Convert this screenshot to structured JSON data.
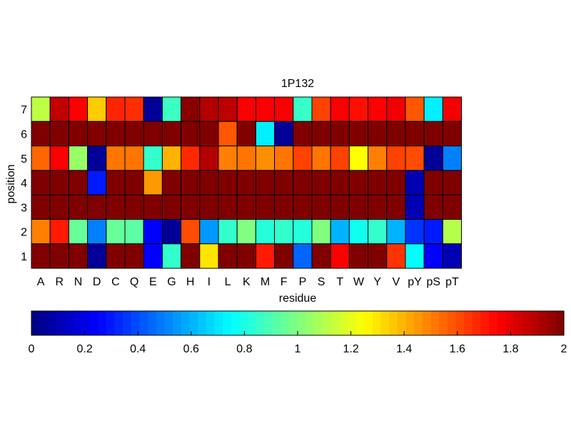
{
  "chart_data": {
    "type": "heatmap",
    "title": "1P132",
    "xlabel": "residue",
    "ylabel": "position",
    "x_categories": [
      "A",
      "R",
      "N",
      "D",
      "C",
      "Q",
      "E",
      "G",
      "H",
      "I",
      "L",
      "K",
      "M",
      "F",
      "P",
      "S",
      "T",
      "W",
      "Y",
      "V",
      "pY",
      "pS",
      "pT"
    ],
    "y_categories": [
      "7",
      "6",
      "5",
      "4",
      "3",
      "2",
      "1"
    ],
    "colorscale": "jet",
    "clim": [
      0,
      2
    ],
    "colorbar": {
      "orientation": "horizontal",
      "ticks": [
        0,
        0.2,
        0.4,
        0.6,
        0.8,
        1,
        1.2,
        1.4,
        1.6,
        1.8,
        2
      ],
      "tick_labels": [
        "0",
        "0.2",
        "0.4",
        "0.6",
        "0.8",
        "1",
        "1.2",
        "1.4",
        "1.6",
        "1.8",
        "2"
      ]
    },
    "values": [
      [
        1.12,
        1.87,
        1.75,
        1.35,
        1.68,
        1.66,
        0.05,
        0.87,
        1.98,
        1.9,
        1.88,
        1.76,
        1.76,
        1.76,
        0.86,
        1.62,
        1.76,
        1.72,
        1.75,
        1.78,
        1.58,
        0.72,
        1.77
      ],
      [
        2.0,
        2.0,
        2.0,
        2.0,
        2.0,
        2.0,
        2.0,
        2.0,
        2.0,
        2.0,
        1.58,
        2.0,
        0.72,
        0.05,
        2.0,
        2.0,
        2.0,
        2.0,
        2.0,
        2.0,
        2.0,
        2.0,
        2.0
      ],
      [
        1.55,
        1.75,
        1.05,
        0.05,
        1.52,
        1.52,
        0.85,
        1.4,
        1.67,
        1.9,
        1.5,
        1.52,
        1.47,
        1.52,
        1.62,
        1.52,
        1.62,
        1.25,
        1.5,
        1.62,
        1.6,
        0.05,
        0.5
      ],
      [
        2.0,
        2.0,
        2.0,
        0.3,
        2.0,
        2.0,
        1.45,
        2.0,
        2.0,
        2.0,
        2.0,
        2.0,
        2.0,
        2.0,
        2.0,
        2.0,
        2.0,
        2.0,
        2.0,
        2.0,
        0.1,
        2.0,
        2.0
      ],
      [
        2.0,
        2.0,
        2.0,
        2.0,
        2.0,
        2.0,
        2.0,
        2.0,
        2.0,
        2.0,
        2.0,
        2.0,
        2.0,
        2.0,
        2.0,
        2.0,
        2.0,
        2.0,
        2.0,
        2.0,
        0.1,
        2.0,
        2.0
      ],
      [
        1.5,
        1.7,
        0.95,
        0.5,
        0.95,
        0.93,
        0.25,
        0.05,
        1.6,
        0.55,
        0.85,
        1.0,
        0.82,
        0.85,
        0.82,
        1.0,
        0.6,
        0.78,
        0.85,
        0.6,
        0.35,
        0.3,
        1.1
      ],
      [
        2.0,
        2.0,
        2.0,
        0.05,
        2.0,
        2.0,
        0.25,
        0.85,
        2.0,
        1.3,
        2.0,
        2.0,
        1.7,
        2.0,
        0.45,
        2.0,
        1.75,
        2.0,
        2.0,
        1.65,
        0.75,
        0.25,
        0.1
      ]
    ]
  }
}
